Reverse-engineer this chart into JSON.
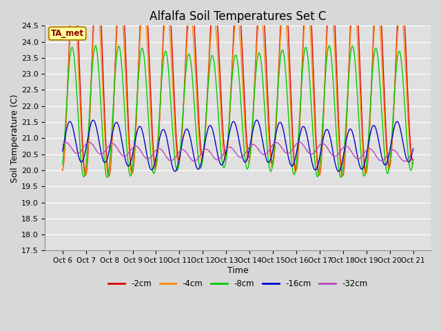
{
  "title": "Alfalfa Soil Temperatures Set C",
  "xlabel": "Time",
  "ylabel": "Soil Temperature (C)",
  "ylim": [
    17.5,
    24.5
  ],
  "annotation": "TA_met",
  "x_tick_labels": [
    "Oct 6",
    "Oct 7",
    "Oct 8",
    "Oct 9",
    "Oct 10",
    "Oct 11",
    "Oct 12",
    "Oct 13",
    "Oct 14",
    "Oct 15",
    "Oct 16",
    "Oct 17",
    "Oct 18",
    "Oct 19",
    "Oct 20",
    "Oct 21"
  ],
  "colors": {
    "-2cm": "#dd0000",
    "-4cm": "#ff8800",
    "-8cm": "#00cc00",
    "-16cm": "#0000cc",
    "-32cm": "#bb44bb"
  },
  "background_color": "#d8d8d8",
  "plot_bg_color": "#e0e0e0",
  "grid_color": "#ffffff",
  "title_fontsize": 12,
  "n_points": 720
}
